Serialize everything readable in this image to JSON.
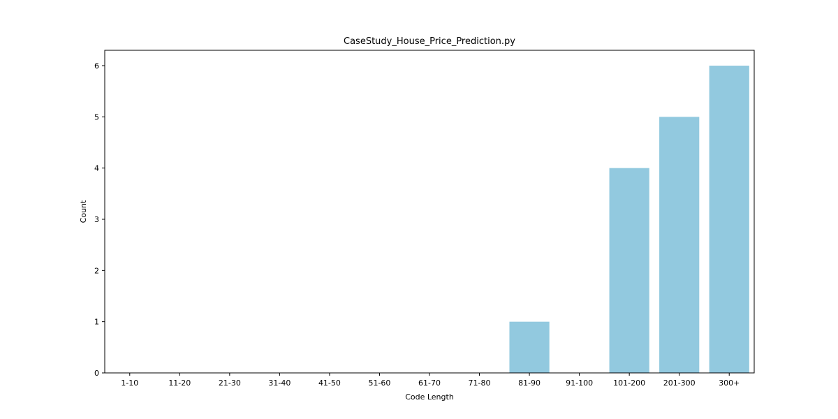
{
  "chart_data": {
    "type": "bar",
    "title": "CaseStudy_House_Price_Prediction.py",
    "xlabel": "Code Length",
    "ylabel": "Count",
    "categories": [
      "1-10",
      "11-20",
      "21-30",
      "31-40",
      "41-50",
      "51-60",
      "61-70",
      "71-80",
      "81-90",
      "91-100",
      "101-200",
      "201-300",
      "300+"
    ],
    "values": [
      0,
      0,
      0,
      0,
      0,
      0,
      0,
      0,
      1,
      0,
      4,
      5,
      6
    ],
    "ylim": [
      0,
      6.3
    ],
    "yticks": [
      0,
      1,
      2,
      3,
      4,
      5,
      6
    ],
    "grid": false,
    "bar_color": "#92c9df"
  }
}
